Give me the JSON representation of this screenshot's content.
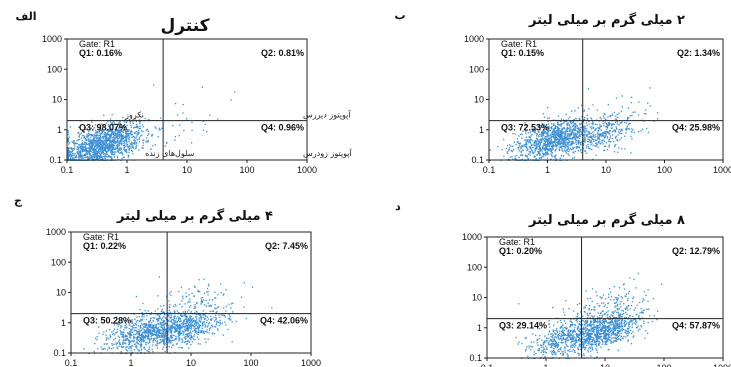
{
  "chart_data": [
    {
      "type": "scatter",
      "panel_letter": "الف",
      "title": "کنترل",
      "gate": "Gate: R1",
      "x_ticks": [
        "0.1",
        "1",
        "10",
        "100",
        "1000"
      ],
      "y_ticks": [
        "1000",
        "100",
        "10",
        "1",
        "0.1"
      ],
      "xlim": [
        0.1,
        1000
      ],
      "ylim": [
        0.1,
        1000
      ],
      "log_scale": true,
      "quadrants": {
        "Q1": "Q1: 0.16%",
        "Q2": "Q2: 0.81%",
        "Q3": "Q3: 98.07%",
        "Q4": "Q4: 0.96%"
      },
      "quadrant_values": {
        "Q1": 0.16,
        "Q2": 0.81,
        "Q3": 98.07,
        "Q4": 0.96
      },
      "gate_x": 4,
      "gate_y": 2,
      "annotations": [
        "نکروز",
        "آپوپتوز دیررس",
        "سلول‌های زنده",
        "آپوپتوز زودرس"
      ],
      "color": "#3a8fd6"
    },
    {
      "type": "scatter",
      "panel_letter": "ب",
      "title": "۲ میلی گرم بر میلی لیتر",
      "gate": "Gate: R1",
      "x_ticks": [
        "0.1",
        "1",
        "10",
        "100",
        "1000"
      ],
      "y_ticks": [
        "1000",
        "100",
        "10",
        "1",
        "0.1"
      ],
      "xlim": [
        0.1,
        1000
      ],
      "ylim": [
        0.1,
        1000
      ],
      "log_scale": true,
      "quadrants": {
        "Q1": "Q1: 0.15%",
        "Q2": "Q2: 1.34%",
        "Q3": "Q3: 72.53%",
        "Q4": "Q4: 25.98%"
      },
      "quadrant_values": {
        "Q1": 0.15,
        "Q2": 1.34,
        "Q3": 72.53,
        "Q4": 25.98
      },
      "gate_x": 4,
      "gate_y": 2,
      "color": "#3a8fd6"
    },
    {
      "type": "scatter",
      "panel_letter": "ج",
      "title": "۴ میلی گرم بر میلی لیتر",
      "gate": "Gate: R1",
      "x_ticks": [
        "0.1",
        "1",
        "10",
        "100",
        "1000"
      ],
      "y_ticks": [
        "1000",
        "100",
        "10",
        "1",
        "0.1"
      ],
      "xlim": [
        0.1,
        1000
      ],
      "ylim": [
        0.1,
        1000
      ],
      "log_scale": true,
      "quadrants": {
        "Q1": "Q1: 0.22%",
        "Q2": "Q2: 7.45%",
        "Q3": "Q3: 50.28%",
        "Q4": "Q4: 42.06%"
      },
      "quadrant_values": {
        "Q1": 0.22,
        "Q2": 7.45,
        "Q3": 50.28,
        "Q4": 42.06
      },
      "gate_x": 4,
      "gate_y": 2,
      "color": "#3a8fd6"
    },
    {
      "type": "scatter",
      "panel_letter": "د",
      "title": "۸ میلی گرم بر میلی لیتر",
      "gate": "Gate: R1",
      "x_ticks": [
        "0.1",
        "1",
        "10",
        "100",
        "1000"
      ],
      "y_ticks": [
        "1000",
        "100",
        "10",
        "1",
        "0.1"
      ],
      "xlim": [
        0.1,
        1000
      ],
      "ylim": [
        0.1,
        1000
      ],
      "log_scale": true,
      "quadrants": {
        "Q1": "Q1: 0.20%",
        "Q2": "Q2: 12.79%",
        "Q3": "Q3: 29.14%",
        "Q4": "Q4: 57.87%"
      },
      "quadrant_values": {
        "Q1": 0.2,
        "Q2": 12.79,
        "Q3": 29.14,
        "Q4": 57.87
      },
      "gate_x": 4,
      "gate_y": 2,
      "color": "#3a8fd6"
    }
  ]
}
